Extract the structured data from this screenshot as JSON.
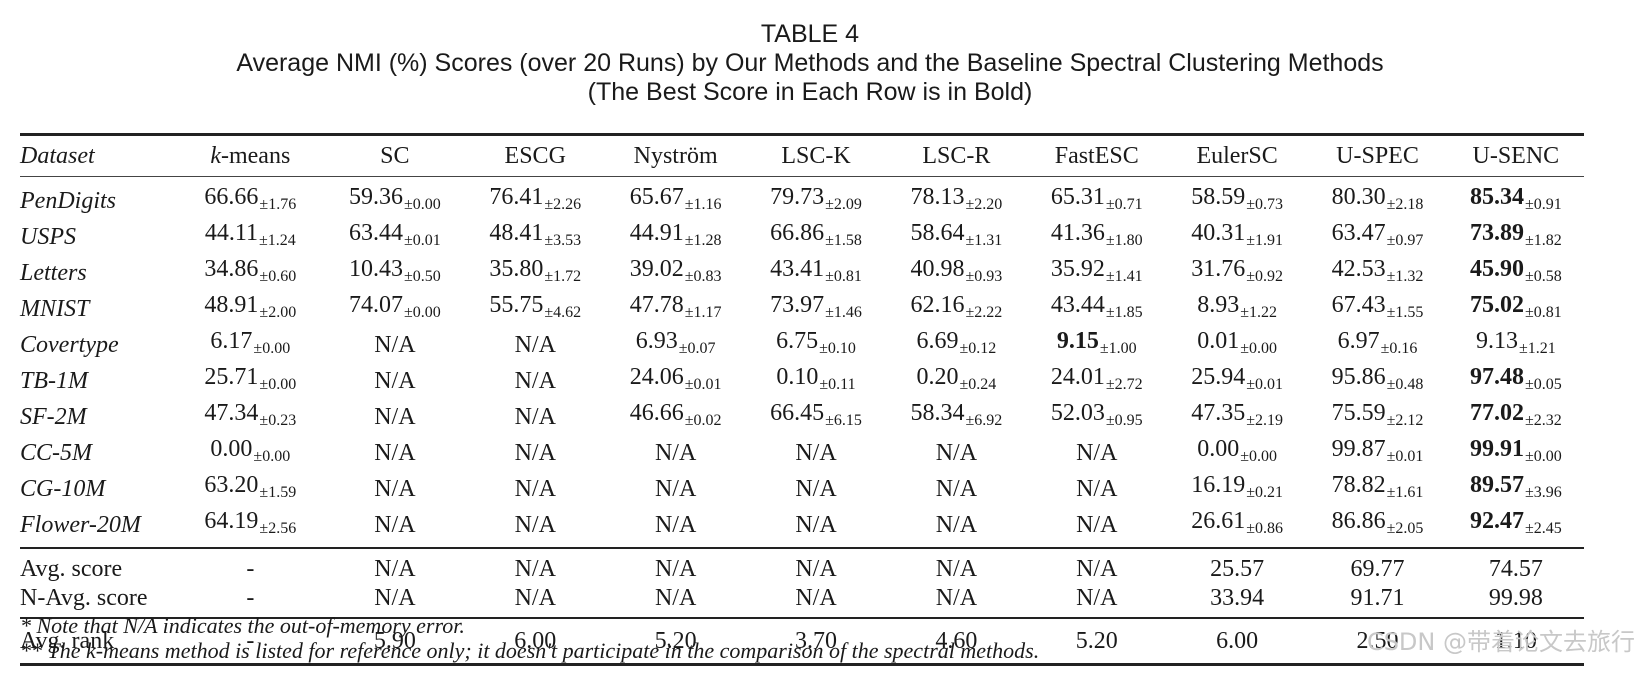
{
  "caption": {
    "label": "TABLE 4",
    "title": "Average NMI (%) Scores (over 20 Runs) by Our Methods and the Baseline Spectral Clustering Methods",
    "subtitle": "(The Best Score in Each Row is in Bold)"
  },
  "table": {
    "headers": [
      "Dataset",
      "k-means",
      "SC",
      "ESCG",
      "Nyström",
      "LSC-K",
      "LSC-R",
      "FastESC",
      "EulerSC",
      "U-SPEC",
      "U-SENC"
    ],
    "header_kmeans_k": "k",
    "header_kmeans_rest": "-means",
    "rows": [
      {
        "dataset": "PenDigits",
        "cells": [
          {
            "v": "66.66",
            "sd": "±1.76"
          },
          {
            "v": "59.36",
            "sd": "±0.00"
          },
          {
            "v": "76.41",
            "sd": "±2.26"
          },
          {
            "v": "65.67",
            "sd": "±1.16"
          },
          {
            "v": "79.73",
            "sd": "±2.09"
          },
          {
            "v": "78.13",
            "sd": "±2.20"
          },
          {
            "v": "65.31",
            "sd": "±0.71"
          },
          {
            "v": "58.59",
            "sd": "±0.73"
          },
          {
            "v": "80.30",
            "sd": "±2.18"
          },
          {
            "v": "85.34",
            "sd": "±0.91",
            "bold": true
          }
        ]
      },
      {
        "dataset": "USPS",
        "cells": [
          {
            "v": "44.11",
            "sd": "±1.24"
          },
          {
            "v": "63.44",
            "sd": "±0.01"
          },
          {
            "v": "48.41",
            "sd": "±3.53"
          },
          {
            "v": "44.91",
            "sd": "±1.28"
          },
          {
            "v": "66.86",
            "sd": "±1.58"
          },
          {
            "v": "58.64",
            "sd": "±1.31"
          },
          {
            "v": "41.36",
            "sd": "±1.80"
          },
          {
            "v": "40.31",
            "sd": "±1.91"
          },
          {
            "v": "63.47",
            "sd": "±0.97"
          },
          {
            "v": "73.89",
            "sd": "±1.82",
            "bold": true
          }
        ]
      },
      {
        "dataset": "Letters",
        "cells": [
          {
            "v": "34.86",
            "sd": "±0.60"
          },
          {
            "v": "10.43",
            "sd": "±0.50"
          },
          {
            "v": "35.80",
            "sd": "±1.72"
          },
          {
            "v": "39.02",
            "sd": "±0.83"
          },
          {
            "v": "43.41",
            "sd": "±0.81"
          },
          {
            "v": "40.98",
            "sd": "±0.93"
          },
          {
            "v": "35.92",
            "sd": "±1.41"
          },
          {
            "v": "31.76",
            "sd": "±0.92"
          },
          {
            "v": "42.53",
            "sd": "±1.32"
          },
          {
            "v": "45.90",
            "sd": "±0.58",
            "bold": true
          }
        ]
      },
      {
        "dataset": "MNIST",
        "cells": [
          {
            "v": "48.91",
            "sd": "±2.00"
          },
          {
            "v": "74.07",
            "sd": "±0.00"
          },
          {
            "v": "55.75",
            "sd": "±4.62"
          },
          {
            "v": "47.78",
            "sd": "±1.17"
          },
          {
            "v": "73.97",
            "sd": "±1.46"
          },
          {
            "v": "62.16",
            "sd": "±2.22"
          },
          {
            "v": "43.44",
            "sd": "±1.85"
          },
          {
            "v": "8.93",
            "sd": "±1.22"
          },
          {
            "v": "67.43",
            "sd": "±1.55"
          },
          {
            "v": "75.02",
            "sd": "±0.81",
            "bold": true
          }
        ]
      },
      {
        "dataset": "Covertype",
        "cells": [
          {
            "v": "6.17",
            "sd": "±0.00"
          },
          {
            "v": "N/A",
            "sd": ""
          },
          {
            "v": "N/A",
            "sd": ""
          },
          {
            "v": "6.93",
            "sd": "±0.07"
          },
          {
            "v": "6.75",
            "sd": "±0.10"
          },
          {
            "v": "6.69",
            "sd": "±0.12"
          },
          {
            "v": "9.15",
            "sd": "±1.00",
            "bold": true
          },
          {
            "v": "0.01",
            "sd": "±0.00"
          },
          {
            "v": "6.97",
            "sd": "±0.16"
          },
          {
            "v": "9.13",
            "sd": "±1.21"
          }
        ]
      },
      {
        "dataset": "TB-1M",
        "cells": [
          {
            "v": "25.71",
            "sd": "±0.00"
          },
          {
            "v": "N/A",
            "sd": ""
          },
          {
            "v": "N/A",
            "sd": ""
          },
          {
            "v": "24.06",
            "sd": "±0.01"
          },
          {
            "v": "0.10",
            "sd": "±0.11"
          },
          {
            "v": "0.20",
            "sd": "±0.24"
          },
          {
            "v": "24.01",
            "sd": "±2.72"
          },
          {
            "v": "25.94",
            "sd": "±0.01"
          },
          {
            "v": "95.86",
            "sd": "±0.48"
          },
          {
            "v": "97.48",
            "sd": "±0.05",
            "bold": true
          }
        ]
      },
      {
        "dataset": "SF-2M",
        "cells": [
          {
            "v": "47.34",
            "sd": "±0.23"
          },
          {
            "v": "N/A",
            "sd": ""
          },
          {
            "v": "N/A",
            "sd": ""
          },
          {
            "v": "46.66",
            "sd": "±0.02"
          },
          {
            "v": "66.45",
            "sd": "±6.15"
          },
          {
            "v": "58.34",
            "sd": "±6.92"
          },
          {
            "v": "52.03",
            "sd": "±0.95"
          },
          {
            "v": "47.35",
            "sd": "±2.19"
          },
          {
            "v": "75.59",
            "sd": "±2.12"
          },
          {
            "v": "77.02",
            "sd": "±2.32",
            "bold": true
          }
        ]
      },
      {
        "dataset": "CC-5M",
        "cells": [
          {
            "v": "0.00",
            "sd": "±0.00"
          },
          {
            "v": "N/A",
            "sd": ""
          },
          {
            "v": "N/A",
            "sd": ""
          },
          {
            "v": "N/A",
            "sd": ""
          },
          {
            "v": "N/A",
            "sd": ""
          },
          {
            "v": "N/A",
            "sd": ""
          },
          {
            "v": "N/A",
            "sd": ""
          },
          {
            "v": "0.00",
            "sd": "±0.00"
          },
          {
            "v": "99.87",
            "sd": "±0.01"
          },
          {
            "v": "99.91",
            "sd": "±0.00",
            "bold": true
          }
        ]
      },
      {
        "dataset": "CG-10M",
        "cells": [
          {
            "v": "63.20",
            "sd": "±1.59"
          },
          {
            "v": "N/A",
            "sd": ""
          },
          {
            "v": "N/A",
            "sd": ""
          },
          {
            "v": "N/A",
            "sd": ""
          },
          {
            "v": "N/A",
            "sd": ""
          },
          {
            "v": "N/A",
            "sd": ""
          },
          {
            "v": "N/A",
            "sd": ""
          },
          {
            "v": "16.19",
            "sd": "±0.21"
          },
          {
            "v": "78.82",
            "sd": "±1.61"
          },
          {
            "v": "89.57",
            "sd": "±3.96",
            "bold": true
          }
        ]
      },
      {
        "dataset": "Flower-20M",
        "cells": [
          {
            "v": "64.19",
            "sd": "±2.56"
          },
          {
            "v": "N/A",
            "sd": ""
          },
          {
            "v": "N/A",
            "sd": ""
          },
          {
            "v": "N/A",
            "sd": ""
          },
          {
            "v": "N/A",
            "sd": ""
          },
          {
            "v": "N/A",
            "sd": ""
          },
          {
            "v": "N/A",
            "sd": ""
          },
          {
            "v": "26.61",
            "sd": "±0.86"
          },
          {
            "v": "86.86",
            "sd": "±2.05"
          },
          {
            "v": "92.47",
            "sd": "±2.45",
            "bold": true
          }
        ]
      }
    ],
    "summary": [
      {
        "label": "Avg. score",
        "cells": [
          "-",
          "N/A",
          "N/A",
          "N/A",
          "N/A",
          "N/A",
          "N/A",
          "25.57",
          "69.77",
          "74.57"
        ],
        "bold_index": 9
      },
      {
        "label": "N-Avg. score",
        "cells": [
          "-",
          "N/A",
          "N/A",
          "N/A",
          "N/A",
          "N/A",
          "N/A",
          "33.94",
          "91.71",
          "99.98"
        ],
        "bold_index": 9
      }
    ],
    "rank": {
      "label": "Avg. rank",
      "cells": [
        "-",
        "5.90",
        "6.00",
        "5.20",
        "3.70",
        "4.60",
        "5.20",
        "6.00",
        "2.50",
        "1.10"
      ],
      "bold_index": 9
    }
  },
  "notes": {
    "note1": "* Note that N/A indicates the out-of-memory error.",
    "note2_prefix": "** The ",
    "note2_k": "k",
    "note2_suffix": "-means method is listed for reference only; it doesn't participate in the comparison of the spectral methods."
  },
  "watermark": "CSDN @带着论文去旅行",
  "chart_data": {
    "type": "table",
    "title": "TABLE 4: Average NMI (%) Scores (over 20 Runs) by Our Methods and the Baseline Spectral Clustering Methods (The Best Score in Each Row is in Bold)",
    "columns": [
      "Dataset",
      "k-means",
      "SC",
      "ESCG",
      "Nyström",
      "LSC-K",
      "LSC-R",
      "FastESC",
      "EulerSC",
      "U-SPEC",
      "U-SENC"
    ],
    "rows": [
      [
        "PenDigits",
        "66.66±1.76",
        "59.36±0.00",
        "76.41±2.26",
        "65.67±1.16",
        "79.73±2.09",
        "78.13±2.20",
        "65.31±0.71",
        "58.59±0.73",
        "80.30±2.18",
        "85.34±0.91"
      ],
      [
        "USPS",
        "44.11±1.24",
        "63.44±0.01",
        "48.41±3.53",
        "44.91±1.28",
        "66.86±1.58",
        "58.64±1.31",
        "41.36±1.80",
        "40.31±1.91",
        "63.47±0.97",
        "73.89±1.82"
      ],
      [
        "Letters",
        "34.86±0.60",
        "10.43±0.50",
        "35.80±1.72",
        "39.02±0.83",
        "43.41±0.81",
        "40.98±0.93",
        "35.92±1.41",
        "31.76±0.92",
        "42.53±1.32",
        "45.90±0.58"
      ],
      [
        "MNIST",
        "48.91±2.00",
        "74.07±0.00",
        "55.75±4.62",
        "47.78±1.17",
        "73.97±1.46",
        "62.16±2.22",
        "43.44±1.85",
        "8.93±1.22",
        "67.43±1.55",
        "75.02±0.81"
      ],
      [
        "Covertype",
        "6.17±0.00",
        "N/A",
        "N/A",
        "6.93±0.07",
        "6.75±0.10",
        "6.69±0.12",
        "9.15±1.00",
        "0.01±0.00",
        "6.97±0.16",
        "9.13±1.21"
      ],
      [
        "TB-1M",
        "25.71±0.00",
        "N/A",
        "N/A",
        "24.06±0.01",
        "0.10±0.11",
        "0.20±0.24",
        "24.01±2.72",
        "25.94±0.01",
        "95.86±0.48",
        "97.48±0.05"
      ],
      [
        "SF-2M",
        "47.34±0.23",
        "N/A",
        "N/A",
        "46.66±0.02",
        "66.45±6.15",
        "58.34±6.92",
        "52.03±0.95",
        "47.35±2.19",
        "75.59±2.12",
        "77.02±2.32"
      ],
      [
        "CC-5M",
        "0.00±0.00",
        "N/A",
        "N/A",
        "N/A",
        "N/A",
        "N/A",
        "N/A",
        "0.00±0.00",
        "99.87±0.01",
        "99.91±0.00"
      ],
      [
        "CG-10M",
        "63.20±1.59",
        "N/A",
        "N/A",
        "N/A",
        "N/A",
        "N/A",
        "N/A",
        "16.19±0.21",
        "78.82±1.61",
        "89.57±3.96"
      ],
      [
        "Flower-20M",
        "64.19±2.56",
        "N/A",
        "N/A",
        "N/A",
        "N/A",
        "N/A",
        "N/A",
        "26.61±0.86",
        "86.86±2.05",
        "92.47±2.45"
      ],
      [
        "Avg. score",
        "-",
        "N/A",
        "N/A",
        "N/A",
        "N/A",
        "N/A",
        "N/A",
        "25.57",
        "69.77",
        "74.57"
      ],
      [
        "N-Avg. score",
        "-",
        "N/A",
        "N/A",
        "N/A",
        "N/A",
        "N/A",
        "N/A",
        "33.94",
        "91.71",
        "99.98"
      ],
      [
        "Avg. rank",
        "-",
        "5.90",
        "6.00",
        "5.20",
        "3.70",
        "4.60",
        "5.20",
        "6.00",
        "2.50",
        "1.10"
      ]
    ]
  }
}
